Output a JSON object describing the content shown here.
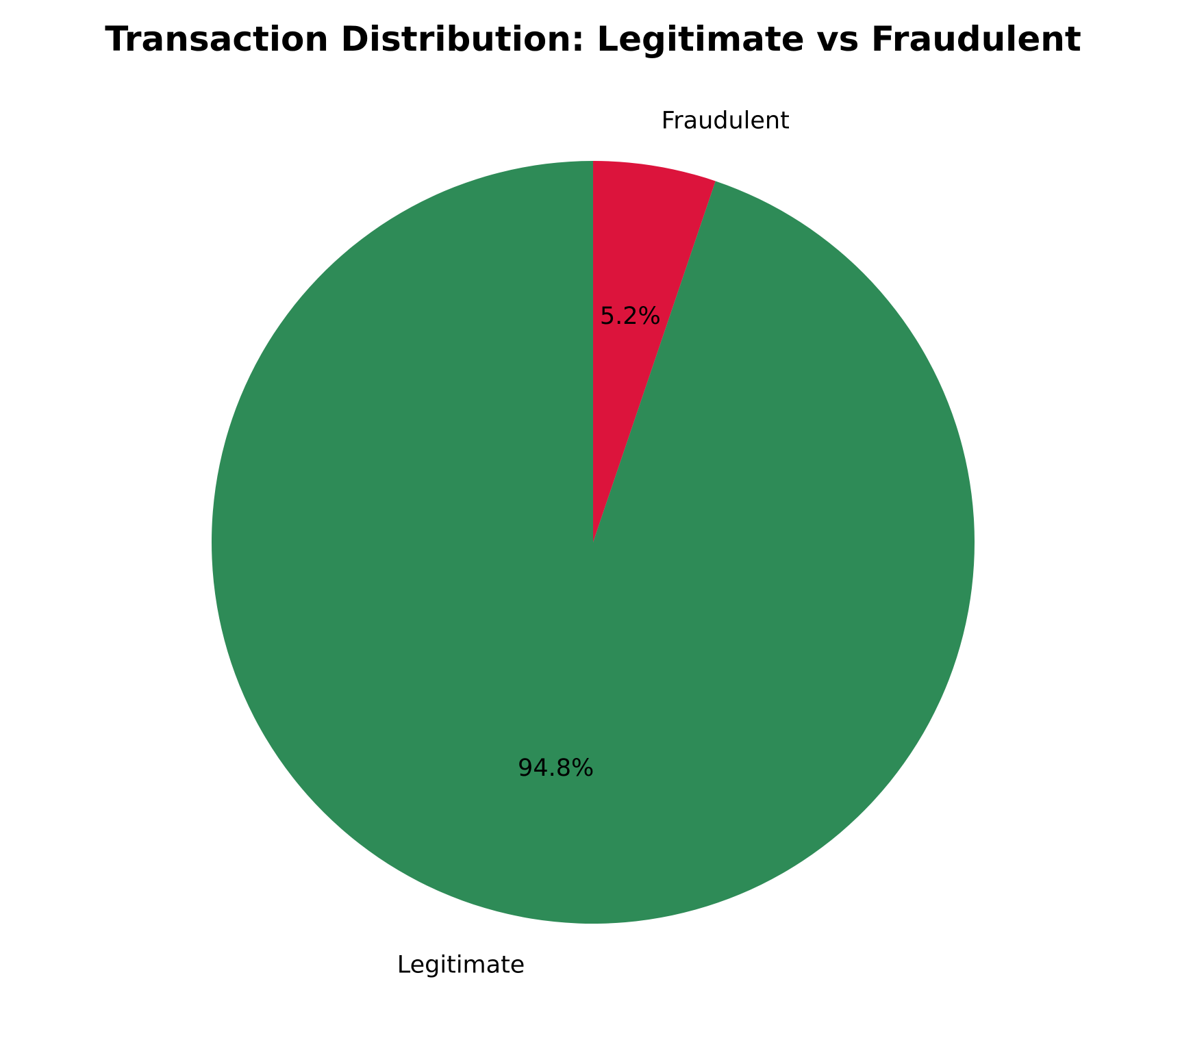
{
  "chart_data": {
    "type": "pie",
    "title": "Transaction Distribution: Legitimate vs Fraudulent",
    "categories": [
      "Fraudulent",
      "Legitimate"
    ],
    "values": [
      5.2,
      94.8
    ],
    "value_labels": [
      "5.2%",
      "94.8%"
    ],
    "colors": [
      "#DC143C",
      "#2E8B57"
    ],
    "start_angle_deg": 90,
    "direction": "clockwise",
    "legend": "none"
  }
}
